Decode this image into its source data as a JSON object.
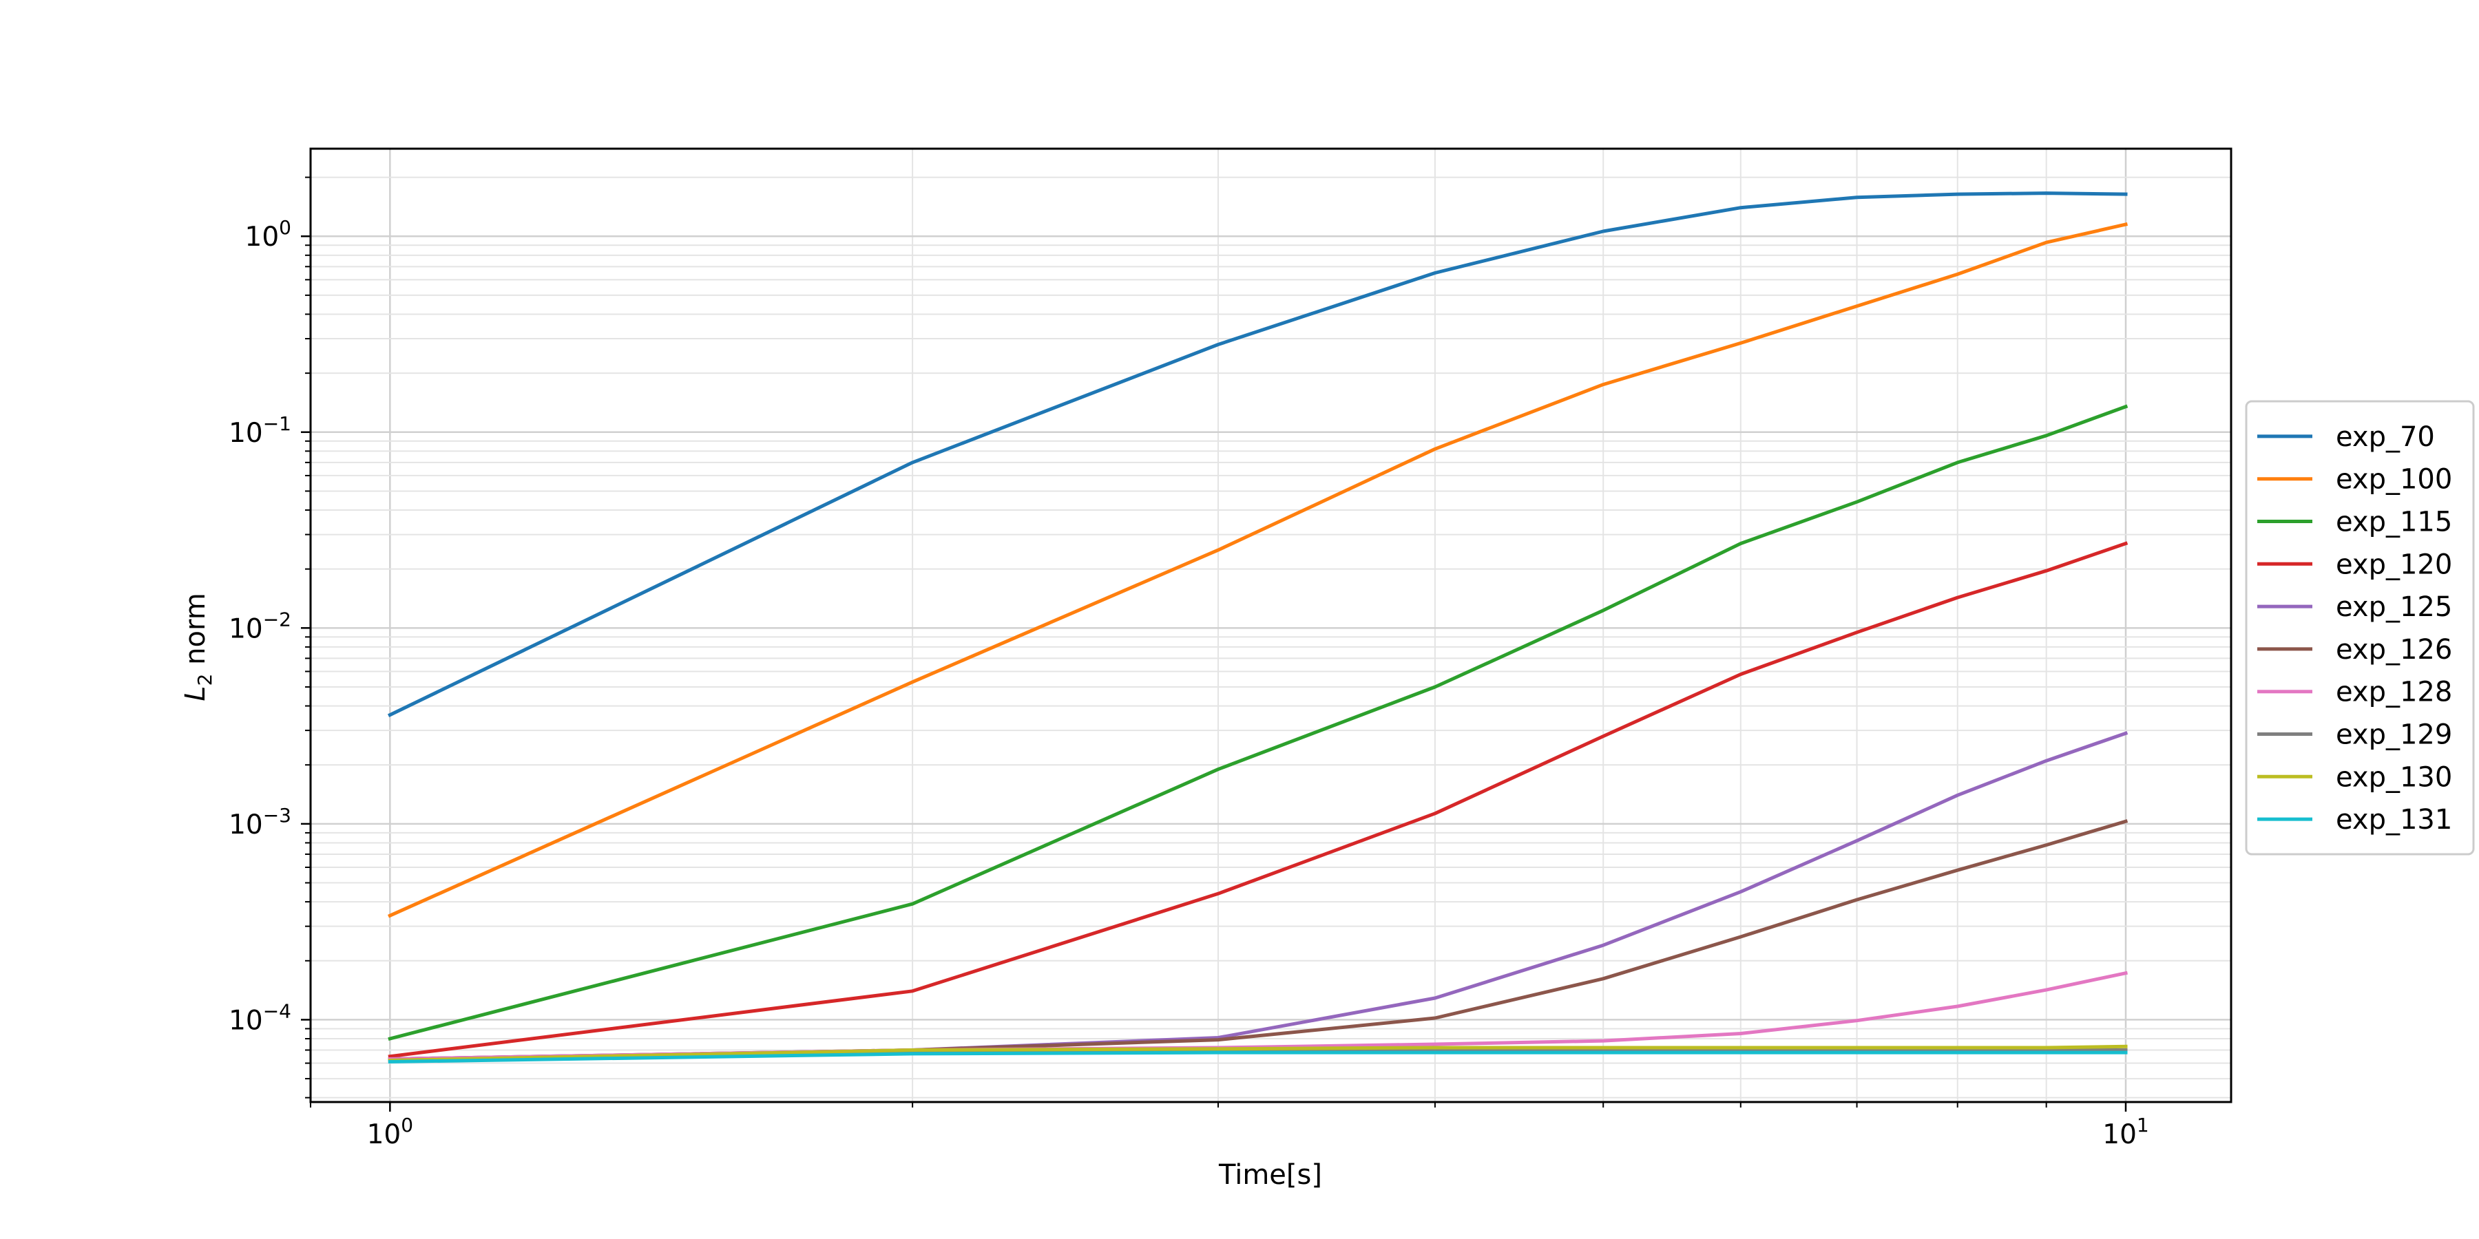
{
  "chart_data": {
    "type": "line",
    "xlabel": "Time[s]",
    "ylabel": "L₂ norm",
    "ylabel_base": "L",
    "ylabel_sub": "2",
    "ylabel_rest": " norm",
    "xscale": "log",
    "yscale": "log",
    "xlim": [
      0.9,
      11.5
    ],
    "ylim": [
      3.8e-05,
      2.8
    ],
    "grid": true,
    "legend_position": "outside-right",
    "x_ticks": [
      {
        "value": 1,
        "base": "10",
        "exp": "0"
      },
      {
        "value": 10,
        "base": "10",
        "exp": "1"
      }
    ],
    "y_ticks": [
      {
        "value": 1,
        "base": "10",
        "exp": "0"
      },
      {
        "value": 0.1,
        "base": "10",
        "exp": "−1"
      },
      {
        "value": 0.01,
        "base": "10",
        "exp": "−2"
      },
      {
        "value": 0.001,
        "base": "10",
        "exp": "−3"
      },
      {
        "value": 0.0001,
        "base": "10",
        "exp": "−4"
      }
    ],
    "x": [
      1,
      2,
      3,
      4,
      5,
      6,
      7,
      8,
      9,
      10
    ],
    "series": [
      {
        "name": "exp_70",
        "color": "#1f77b4",
        "values": [
          0.0036,
          0.07,
          0.28,
          0.65,
          1.06,
          1.4,
          1.58,
          1.64,
          1.66,
          1.64
        ]
      },
      {
        "name": "exp_100",
        "color": "#ff7f0e",
        "values": [
          0.00034,
          0.0053,
          0.025,
          0.082,
          0.175,
          0.285,
          0.44,
          0.64,
          0.93,
          1.15
        ]
      },
      {
        "name": "exp_115",
        "color": "#2ca02c",
        "values": [
          8e-05,
          0.00039,
          0.0019,
          0.005,
          0.0123,
          0.027,
          0.044,
          0.07,
          0.096,
          0.135
        ]
      },
      {
        "name": "exp_120",
        "color": "#d62728",
        "values": [
          6.5e-05,
          0.00014,
          0.00044,
          0.00113,
          0.0028,
          0.0058,
          0.0095,
          0.0143,
          0.0196,
          0.027
        ]
      },
      {
        "name": "exp_125",
        "color": "#9467bd",
        "values": [
          6.3e-05,
          7e-05,
          8.1e-05,
          0.000129,
          0.00024,
          0.00045,
          0.00082,
          0.0014,
          0.0021,
          0.0029
        ]
      },
      {
        "name": "exp_126",
        "color": "#8c564b",
        "values": [
          6.3e-05,
          7e-05,
          7.9e-05,
          0.000102,
          0.000162,
          0.000265,
          0.00041,
          0.00058,
          0.00078,
          0.00103
        ]
      },
      {
        "name": "exp_128",
        "color": "#e377c2",
        "values": [
          6.3e-05,
          7e-05,
          7.2e-05,
          7.5e-05,
          7.8e-05,
          8.5e-05,
          9.9e-05,
          0.000117,
          0.000142,
          0.000173
        ]
      },
      {
        "name": "exp_129",
        "color": "#7f7f7f",
        "values": [
          6.2e-05,
          6.9e-05,
          7e-05,
          7e-05,
          7e-05,
          7e-05,
          7e-05,
          7e-05,
          7e-05,
          7e-05
        ]
      },
      {
        "name": "exp_130",
        "color": "#bcbd22",
        "values": [
          6.2e-05,
          7e-05,
          7.1e-05,
          7.2e-05,
          7.2e-05,
          7.2e-05,
          7.2e-05,
          7.2e-05,
          7.2e-05,
          7.3e-05
        ]
      },
      {
        "name": "exp_131",
        "color": "#17becf",
        "values": [
          6.1e-05,
          6.7e-05,
          6.8e-05,
          6.8e-05,
          6.8e-05,
          6.8e-05,
          6.8e-05,
          6.8e-05,
          6.8e-05,
          6.8e-05
        ]
      }
    ]
  }
}
